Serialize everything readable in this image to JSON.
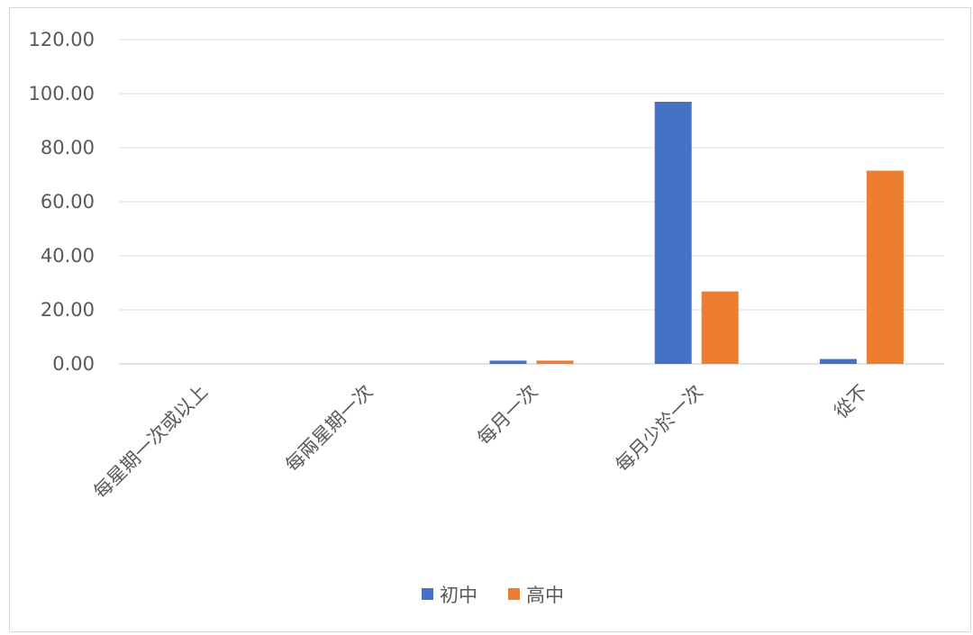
{
  "chart_data": {
    "type": "bar",
    "title": "",
    "xlabel": "",
    "ylabel": "",
    "categories": [
      "每星期一次或以上",
      "每兩星期一次",
      "每月一次",
      "每月少於一次",
      "從不"
    ],
    "series": [
      {
        "name": "初中",
        "color": "#4472c4",
        "values": [
          0,
          0,
          1.2,
          97.0,
          1.8
        ]
      },
      {
        "name": "高中",
        "color": "#ed7d31",
        "values": [
          0,
          0,
          1.2,
          26.8,
          71.5
        ]
      }
    ],
    "ylim": [
      0,
      120
    ],
    "yticks": [
      "0.00",
      "20.00",
      "40.00",
      "60.00",
      "80.00",
      "100.00",
      "120.00"
    ],
    "grid": true,
    "legend_position": "bottom"
  }
}
